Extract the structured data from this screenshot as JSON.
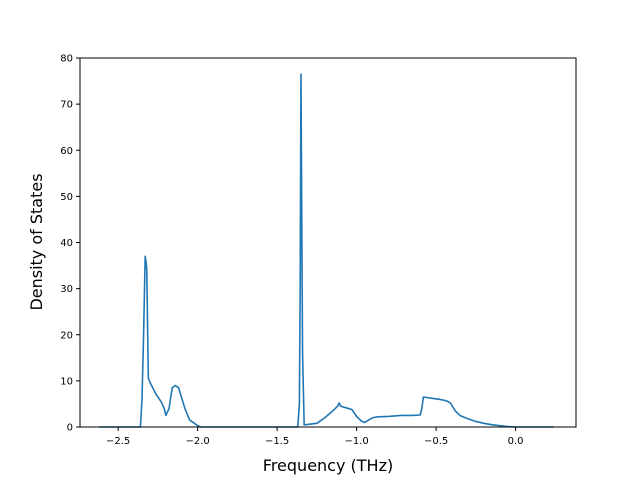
{
  "chart_data": {
    "type": "line",
    "title": "",
    "xlabel": "Frequency (THz)",
    "ylabel": "Density of States",
    "xlim": [
      -2.74,
      0.38
    ],
    "ylim": [
      0,
      80
    ],
    "grid": false,
    "color": "#1f77b4",
    "x_ticks": [
      -2.5,
      -2.0,
      -1.5,
      -1.0,
      -0.5,
      0.0
    ],
    "x_tick_labels": [
      "−2.5",
      "−2.0",
      "−1.5",
      "−1.0",
      "−0.5",
      "0.0"
    ],
    "y_ticks": [
      0,
      10,
      20,
      30,
      40,
      50,
      60,
      70,
      80
    ],
    "y_tick_labels": [
      "0",
      "10",
      "20",
      "30",
      "40",
      "50",
      "60",
      "70",
      "80"
    ],
    "series": [
      {
        "x": [
          -2.62,
          -2.38,
          -2.36,
          -2.35,
          -2.34,
          -2.33,
          -2.325,
          -2.32,
          -2.31,
          -2.29,
          -2.26,
          -2.23,
          -2.21,
          -2.2,
          -2.18,
          -2.16,
          -2.14,
          -2.12,
          -2.08,
          -2.05,
          -2.02,
          -2.0,
          -1.98,
          -1.4,
          -1.37,
          -1.36,
          -1.355,
          -1.35,
          -1.345,
          -1.34,
          -1.33,
          -1.32,
          -1.25,
          -1.2,
          -1.15,
          -1.12,
          -1.11,
          -1.1,
          -1.08,
          -1.05,
          -1.03,
          -1.0,
          -0.97,
          -0.95,
          -0.93,
          -0.9,
          -0.87,
          -0.8,
          -0.72,
          -0.65,
          -0.6,
          -0.59,
          -0.58,
          -0.56,
          -0.52,
          -0.48,
          -0.45,
          -0.43,
          -0.41,
          -0.38,
          -0.35,
          -0.3,
          -0.25,
          -0.2,
          -0.15,
          -0.1,
          -0.05,
          0.0,
          0.05,
          0.1,
          0.24
        ],
        "y": [
          0,
          0,
          0,
          6,
          20,
          37,
          36,
          34,
          10.5,
          9,
          7,
          5.5,
          4,
          2.5,
          4,
          8.5,
          9,
          8.5,
          4,
          1.5,
          0.8,
          0.3,
          0,
          0,
          0,
          5,
          30,
          76.5,
          45,
          16,
          0.5,
          0.5,
          0.8,
          2,
          3.5,
          4.5,
          5.2,
          4.5,
          4.3,
          4,
          3.8,
          2.3,
          1.3,
          1,
          1.4,
          2,
          2.2,
          2.3,
          2.5,
          2.5,
          2.6,
          4,
          6.5,
          6.4,
          6.2,
          6,
          5.8,
          5.6,
          5.2,
          3.5,
          2.5,
          1.8,
          1.2,
          0.8,
          0.5,
          0.3,
          0.1,
          0,
          0,
          0,
          0
        ]
      }
    ]
  }
}
